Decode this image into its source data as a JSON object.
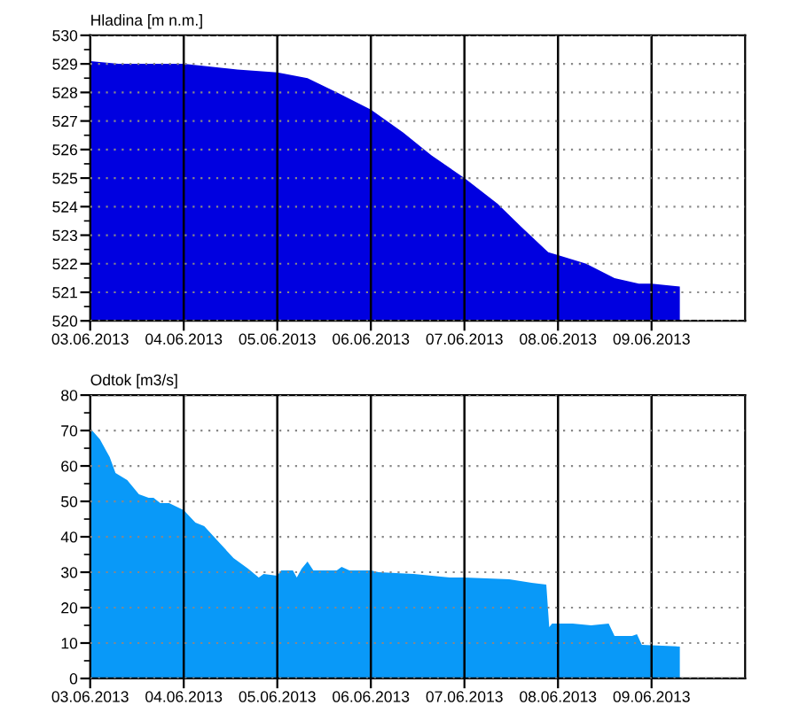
{
  "chart_data": [
    {
      "type": "area",
      "title": "Hladina [m n.m.]",
      "xlim": [
        "2013-06-03",
        "2013-06-10"
      ],
      "xticks": [
        {
          "value": "2013-06-03",
          "label": "03.06.2013"
        },
        {
          "value": "2013-06-04",
          "label": "04.06.2013"
        },
        {
          "value": "2013-06-05",
          "label": "05.06.2013"
        },
        {
          "value": "2013-06-06",
          "label": "06.06.2013"
        },
        {
          "value": "2013-06-07",
          "label": "07.06.2013"
        },
        {
          "value": "2013-06-08",
          "label": "08.06.2013"
        },
        {
          "value": "2013-06-09",
          "label": "09.06.2013"
        }
      ],
      "ylim": [
        520,
        530
      ],
      "yticks": [
        520,
        521,
        522,
        523,
        524,
        525,
        526,
        527,
        528,
        529,
        530
      ],
      "grid": true,
      "series": [
        {
          "color": "#0000e0",
          "x": [
            "2013-06-03T00:00",
            "2013-06-03T07:15",
            "2013-06-04T00:00",
            "2013-06-04T13:45",
            "2013-06-05T00:00",
            "2013-06-05T07:45",
            "2013-06-05T15:15",
            "2013-06-06T00:00",
            "2013-06-06T08:15",
            "2013-06-06T15:30",
            "2013-06-07T00:00",
            "2013-06-07T08:30",
            "2013-06-07T14:30",
            "2013-06-07T21:30",
            "2013-06-08T00:00",
            "2013-06-08T07:15",
            "2013-06-08T14:30",
            "2013-06-08T20:45",
            "2013-06-09T00:00",
            "2013-06-09T07:15"
          ],
          "values": [
            529.1,
            529.0,
            529.0,
            528.8,
            528.7,
            528.5,
            528.0,
            527.4,
            526.6,
            525.8,
            525.0,
            524.1,
            523.3,
            522.4,
            522.3,
            522.0,
            521.5,
            521.3,
            521.3,
            521.2
          ]
        }
      ]
    },
    {
      "type": "area",
      "title": "Odtok [m3/s]",
      "xlim": [
        "2013-06-03",
        "2013-06-10"
      ],
      "xticks": [
        {
          "value": "2013-06-03",
          "label": "03.06.2013"
        },
        {
          "value": "2013-06-04",
          "label": "04.06.2013"
        },
        {
          "value": "2013-06-05",
          "label": "05.06.2013"
        },
        {
          "value": "2013-06-06",
          "label": "06.06.2013"
        },
        {
          "value": "2013-06-07",
          "label": "07.06.2013"
        },
        {
          "value": "2013-06-08",
          "label": "08.06.2013"
        },
        {
          "value": "2013-06-09",
          "label": "09.06.2013"
        }
      ],
      "ylim": [
        0,
        80
      ],
      "yticks": [
        0,
        10,
        20,
        30,
        40,
        50,
        60,
        70,
        80
      ],
      "grid": true,
      "series": [
        {
          "color": "#0999f8",
          "x": [
            "2013-06-03T00:00",
            "2013-06-03T00:30",
            "2013-06-03T02:30",
            "2013-06-03T05:00",
            "2013-06-03T06:30",
            "2013-06-03T09:30",
            "2013-06-03T12:30",
            "2013-06-03T15:00",
            "2013-06-03T16:15",
            "2013-06-03T18:00",
            "2013-06-03T20:15",
            "2013-06-04T00:00",
            "2013-06-04T03:00",
            "2013-06-04T05:15",
            "2013-06-04T09:00",
            "2013-06-04T12:45",
            "2013-06-04T16:30",
            "2013-06-04T19:15",
            "2013-06-04T20:30",
            "2013-06-05T00:00",
            "2013-06-05T01:00",
            "2013-06-05T04:00",
            "2013-06-05T05:00",
            "2013-06-05T06:15",
            "2013-06-05T07:45",
            "2013-06-05T09:15",
            "2013-06-05T15:15",
            "2013-06-05T16:30",
            "2013-06-05T18:30",
            "2013-06-06T00:00",
            "2013-06-06T02:00",
            "2013-06-06T11:00",
            "2013-06-06T20:15",
            "2013-06-07T00:00",
            "2013-06-07T11:30",
            "2013-06-07T17:15",
            "2013-06-07T21:00",
            "2013-06-07T21:45",
            "2013-06-07T22:30",
            "2013-06-08T03:45",
            "2013-06-08T08:30",
            "2013-06-08T13:00",
            "2013-06-08T14:30",
            "2013-06-08T19:00",
            "2013-06-08T20:15",
            "2013-06-08T21:30",
            "2013-06-09T07:15"
          ],
          "values": [
            71,
            70,
            67.5,
            62.5,
            58,
            56,
            52,
            51,
            51,
            49.5,
            49.5,
            47.5,
            44,
            43,
            38.5,
            34,
            31,
            28.5,
            29.5,
            29,
            30.5,
            30.5,
            28.5,
            31,
            33,
            30.5,
            30.5,
            31.5,
            30.5,
            30.5,
            30,
            29.5,
            28.5,
            28.5,
            28,
            27,
            26.5,
            14.5,
            15.5,
            15.5,
            15,
            15.5,
            12,
            12,
            12.5,
            9.5,
            9
          ]
        }
      ]
    }
  ]
}
